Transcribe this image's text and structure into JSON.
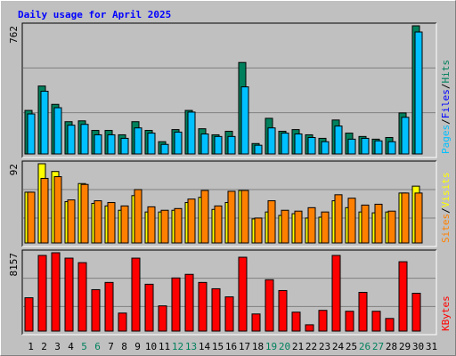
{
  "chart_data": {
    "type": "bar",
    "title": "Daily usage for April 2025",
    "categories": [
      "1",
      "2",
      "3",
      "4",
      "5",
      "6",
      "7",
      "8",
      "9",
      "10",
      "11",
      "12",
      "13",
      "14",
      "15",
      "16",
      "17",
      "18",
      "19",
      "20",
      "21",
      "22",
      "23",
      "24",
      "25",
      "26",
      "27",
      "28",
      "29",
      "30",
      "31"
    ],
    "highlight": [
      4,
      5,
      11,
      12,
      18,
      19,
      25,
      26
    ],
    "highlight_color": "#00805c",
    "separator": "/",
    "panels": [
      {
        "ylim": [
          0,
          762
        ],
        "yticks": [
          762
        ],
        "legend": [
          {
            "text": "Pages",
            "color": "#00c0ff"
          },
          {
            "text": "Files",
            "color": "#0000ff"
          },
          {
            "text": "Hits",
            "color": "#00805c"
          }
        ],
        "series": [
          {
            "color": "#00805c",
            "values": [
              259,
              404,
              295,
              192,
              197,
              140,
              140,
              114,
              192,
              140,
              73,
              145,
              259,
              150,
              114,
              135,
              544,
              62,
              212,
              135,
              145,
              114,
              93,
              202,
              124,
              104,
              88,
              98,
              244,
              762,
              0
            ]
          },
          {
            "color": "#00c0ff",
            "values": [
              238,
              373,
              275,
              171,
              176,
              114,
              114,
              93,
              155,
              124,
              57,
              130,
              249,
              119,
              104,
              104,
              399,
              52,
              155,
              124,
              119,
              98,
              73,
              166,
              88,
              93,
              78,
              73,
              218,
              725,
              0
            ]
          }
        ]
      },
      {
        "ylim": [
          0,
          92
        ],
        "yticks": [
          92
        ],
        "legend": [
          {
            "text": "Sites",
            "color": "#ff8000"
          },
          {
            "text": "Visits",
            "color": "#ffff00"
          }
        ],
        "series": [
          {
            "color": "#ffff00",
            "values": [
              59,
              92,
              83,
              48,
              69,
              46,
              43,
              38,
              55,
              36,
              36,
              38,
              47,
              53,
              39,
              47,
              61,
              28,
              36,
              32,
              34,
              29,
              30,
              49,
              41,
              36,
              35,
              36,
              58,
              66,
              0
            ]
          },
          {
            "color": "#ff8000",
            "values": [
              59,
              75,
              77,
              50,
              68,
              49,
              47,
              43,
              62,
              42,
              38,
              40,
              51,
              61,
              43,
              60,
              61,
              29,
              49,
              38,
              37,
              41,
              36,
              56,
              52,
              44,
              45,
              37,
              58,
              58,
              0
            ]
          }
        ]
      },
      {
        "ylim": [
          0,
          8157
        ],
        "yticks": [
          8157
        ],
        "legend": [
          {
            "text": "KBytes",
            "color": "#ff0000"
          }
        ],
        "series": [
          {
            "color": "#ff0000",
            "values": [
              3470,
              7879,
              8157,
              7597,
              7128,
              4315,
              5065,
              1876,
              7597,
              4878,
              2626,
              5534,
              5909,
              5065,
              4409,
              3564,
              7691,
              1782,
              5346,
              4221,
              1970,
              657,
              2157,
              7879,
              2063,
              4033,
              2063,
              1313,
              7222,
              3940,
              0
            ]
          }
        ]
      }
    ]
  }
}
